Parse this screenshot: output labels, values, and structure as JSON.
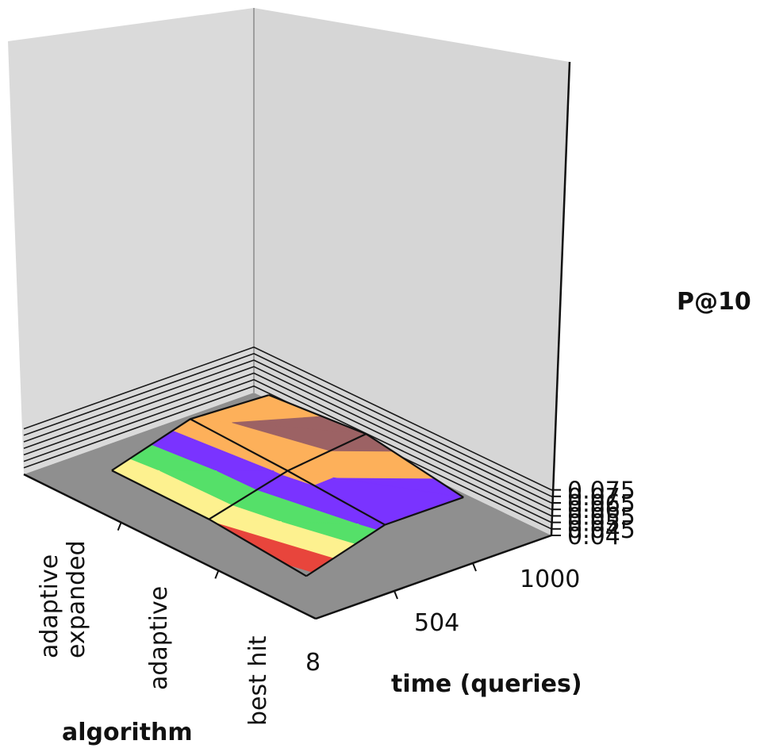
{
  "chart_data": {
    "type": "surface",
    "x_categories": [
      "adaptive expanded",
      "adaptive",
      "best hit"
    ],
    "y_categories": [
      "8",
      "504",
      "1000"
    ],
    "xlabel": "algorithm",
    "ylabel": "time (queries)",
    "zlabel": "P@10",
    "zlim": [
      0.04,
      0.075
    ],
    "z_ticks": [
      "0.04",
      "0.045",
      "0.05",
      "0.055",
      "0.06",
      "0.065",
      "0.07",
      "0.075"
    ],
    "grid": true,
    "series": [
      {
        "time": "8",
        "values": [
          0.0508,
          0.0503,
          0.0436
        ]
      },
      {
        "time": "504",
        "values": [
          0.069,
          0.0662,
          0.0617
        ]
      },
      {
        "time": "1000",
        "values": [
          0.0661,
          0.0732,
          0.0615
        ]
      }
    ],
    "color_bands": [
      {
        "range": [
          0.045,
          0.05
        ],
        "color": "#e8453c"
      },
      {
        "range": [
          0.05,
          0.055
        ],
        "color": "#fdf18f"
      },
      {
        "range": [
          0.055,
          0.06
        ],
        "color": "#55e069"
      },
      {
        "range": [
          0.06,
          0.065
        ],
        "color": "#7a33ff"
      },
      {
        "range": [
          0.065,
          0.07
        ],
        "color": "#fdb05a"
      },
      {
        "range": [
          0.07,
          0.075
        ],
        "color": "#9c6264"
      }
    ],
    "colors": {
      "wall": "#d6d6d6",
      "floor": "#8f8f8f"
    }
  }
}
